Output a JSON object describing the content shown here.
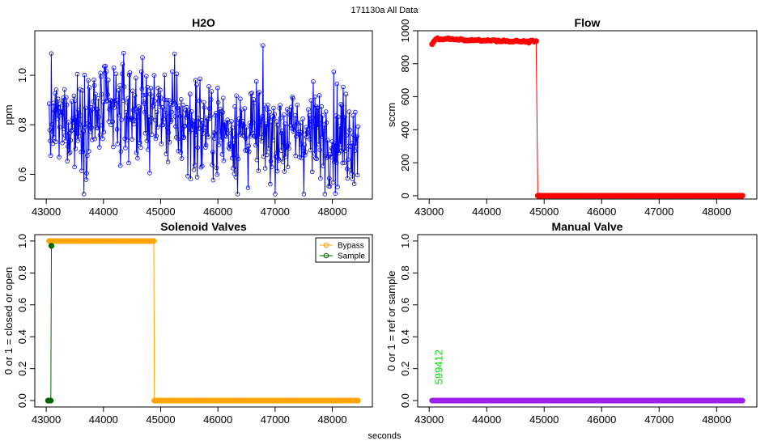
{
  "figure": {
    "suptitle": "171130a   All Data",
    "xlabel": "seconds"
  },
  "chart_data": [
    {
      "id": "h2o",
      "type": "line",
      "title": "H2O",
      "xlabel": "",
      "ylabel": "ppm",
      "xlim": [
        42800,
        48700
      ],
      "ylim": [
        0.5,
        1.18
      ],
      "xticks": [
        43000,
        44000,
        45000,
        46000,
        47000,
        48000
      ],
      "yticks": [
        0.6,
        0.8,
        1.0
      ],
      "ytick_labels": [
        "0.6",
        "0.8",
        "1.0"
      ],
      "series": [
        {
          "name": "H2O",
          "color": "#0000ff",
          "marker": "open-circle",
          "x_start": 43050,
          "x_end": 48450,
          "n_points": 560,
          "trend_x": [
            43050,
            44000,
            44500,
            45000,
            45500,
            46500,
            48450
          ],
          "trend_y": [
            0.8,
            0.84,
            0.86,
            0.85,
            0.8,
            0.77,
            0.76
          ],
          "noise_sd": 0.1,
          "y_range": [
            0.52,
            1.14
          ]
        }
      ],
      "annotations": []
    },
    {
      "id": "flow",
      "type": "line",
      "title": "Flow",
      "xlabel": "",
      "ylabel": "sccm",
      "xlim": [
        42800,
        48700
      ],
      "ylim": [
        -20,
        1000
      ],
      "xticks": [
        43000,
        44000,
        45000,
        46000,
        47000,
        48000
      ],
      "yticks": [
        0,
        200,
        400,
        600,
        800,
        1000
      ],
      "ytick_labels": [
        "0",
        "200",
        "400",
        "600",
        "800",
        "1000"
      ],
      "series": [
        {
          "name": "Flow",
          "color": "#ff0000",
          "marker": "filled-circle",
          "segments": [
            {
              "x": [
                43050,
                43120,
                43200,
                44000,
                44860
              ],
              "y": [
                920,
                955,
                950,
                940,
                935
              ],
              "noise_sd": 6
            },
            {
              "x": [
                44890,
                48450
              ],
              "y": [
                0,
                0
              ],
              "noise_sd": 0
            }
          ]
        }
      ],
      "annotations": []
    },
    {
      "id": "solenoid",
      "type": "line",
      "title": "Solenoid Valves",
      "xlabel": "",
      "ylabel": "0 or 1 = closed or open",
      "xlim": [
        42800,
        48700
      ],
      "ylim": [
        -0.04,
        1.04
      ],
      "xticks": [
        43000,
        44000,
        45000,
        46000,
        47000,
        48000
      ],
      "yticks": [
        0.0,
        0.2,
        0.4,
        0.6,
        0.8,
        1.0
      ],
      "ytick_labels": [
        "0.0",
        "0.2",
        "0.4",
        "0.6",
        "0.8",
        "1.0"
      ],
      "legend": {
        "position": "top-right",
        "entries": [
          "Bypass",
          "Sample"
        ]
      },
      "series": [
        {
          "name": "Bypass",
          "color": "#ffa500",
          "marker": "filled-circle",
          "segments": [
            {
              "x": [
                43050,
                44880
              ],
              "y": [
                1.0,
                1.0
              ]
            },
            {
              "x": [
                44890,
                48450
              ],
              "y": [
                0.0,
                0.0
              ]
            }
          ]
        },
        {
          "name": "Sample",
          "color": "#006400",
          "marker": "filled-circle",
          "segments": [
            {
              "x": [
                43030,
                43080
              ],
              "y": [
                0.0,
                0.0
              ]
            },
            {
              "x": [
                43090,
                43090
              ],
              "y": [
                0.97,
                0.97
              ]
            }
          ]
        }
      ],
      "annotations": []
    },
    {
      "id": "manual",
      "type": "line",
      "title": "Manual Valve",
      "xlabel": "",
      "ylabel": "0 or 1 = ref or sample",
      "xlim": [
        42800,
        48700
      ],
      "ylim": [
        -0.04,
        1.04
      ],
      "xticks": [
        43000,
        44000,
        45000,
        46000,
        47000,
        48000
      ],
      "yticks": [
        0.0,
        0.2,
        0.4,
        0.6,
        0.8,
        1.0
      ],
      "ytick_labels": [
        "0.0",
        "0.2",
        "0.4",
        "0.6",
        "0.8",
        "1.0"
      ],
      "series": [
        {
          "name": "Manual",
          "color": "#a020f0",
          "marker": "filled-circle",
          "segments": [
            {
              "x": [
                43050,
                48450
              ],
              "y": [
                0.0,
                0.0
              ]
            }
          ]
        }
      ],
      "annotations": [
        {
          "text": "599412",
          "x": 43230,
          "y": 0.1,
          "color": "#00dd00",
          "rotation": -90
        }
      ]
    }
  ]
}
